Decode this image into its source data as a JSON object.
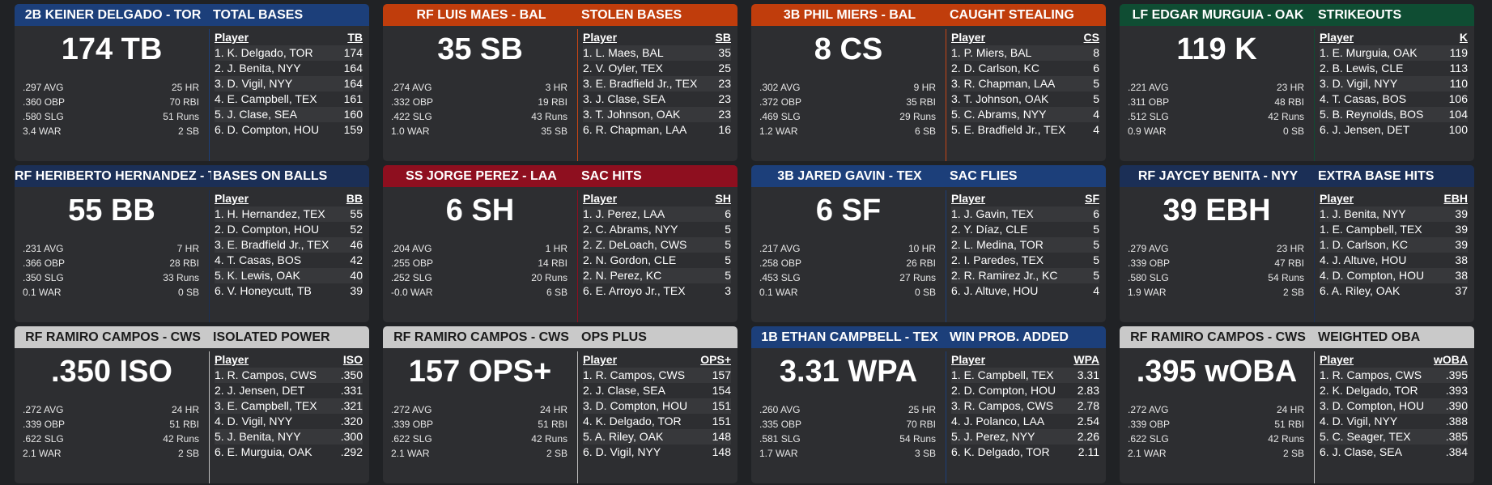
{
  "colors": {
    "blue": "#1c3f7a",
    "orange": "#c03d0c",
    "green": "#0f4d33",
    "red": "#8e0f1f",
    "navy": "#1b2f56",
    "gray": "#c9c9c9"
  },
  "cards": [
    {
      "color": "#1c3f7a",
      "player_title": "2B KEINER DELGADO - TOR",
      "stat_title": "TOTAL BASES",
      "big": "174 TB",
      "stats": [
        [
          ".297 AVG",
          "25 HR"
        ],
        [
          ".360 OBP",
          "70 RBI"
        ],
        [
          ".580 SLG",
          "51 Runs"
        ],
        [
          "3.4 WAR",
          "2 SB"
        ]
      ],
      "leader_head": [
        "Player",
        "TB"
      ],
      "leaders": [
        [
          "1. K. Delgado, TOR",
          "174"
        ],
        [
          "2. J. Benita, NYY",
          "164"
        ],
        [
          "3. D. Vigil, NYY",
          "164"
        ],
        [
          "4. E. Campbell, TEX",
          "161"
        ],
        [
          "5. J. Clase, SEA",
          "160"
        ],
        [
          "6. D. Compton, HOU",
          "159"
        ]
      ]
    },
    {
      "color": "#c03d0c",
      "player_title": "RF LUIS MAES - BAL",
      "stat_title": "STOLEN BASES",
      "big": "35 SB",
      "stats": [
        [
          ".274 AVG",
          "3 HR"
        ],
        [
          ".332 OBP",
          "19 RBI"
        ],
        [
          ".422 SLG",
          "43 Runs"
        ],
        [
          "1.0 WAR",
          "35 SB"
        ]
      ],
      "leader_head": [
        "Player",
        "SB"
      ],
      "leaders": [
        [
          "1. L. Maes, BAL",
          "35"
        ],
        [
          "2. V. Oyler, TEX",
          "25"
        ],
        [
          "3. E. Bradfield Jr., TEX",
          "23"
        ],
        [
          "3. J. Clase, SEA",
          "23"
        ],
        [
          "3. T. Johnson, OAK",
          "23"
        ],
        [
          "6. R. Chapman, LAA",
          "16"
        ]
      ]
    },
    {
      "color": "#c03d0c",
      "player_title": "3B PHIL MIERS - BAL",
      "stat_title": "CAUGHT STEALING",
      "big": "8 CS",
      "stats": [
        [
          ".302 AVG",
          "9 HR"
        ],
        [
          ".372 OBP",
          "35 RBI"
        ],
        [
          ".469 SLG",
          "29 Runs"
        ],
        [
          "1.2 WAR",
          "6 SB"
        ]
      ],
      "leader_head": [
        "Player",
        "CS"
      ],
      "leaders": [
        [
          "1. P. Miers, BAL",
          "8"
        ],
        [
          "2. D. Carlson, KC",
          "6"
        ],
        [
          "3. R. Chapman, LAA",
          "5"
        ],
        [
          "3. T. Johnson, OAK",
          "5"
        ],
        [
          "5. C. Abrams, NYY",
          "4"
        ],
        [
          "5. E. Bradfield Jr., TEX",
          "4"
        ]
      ]
    },
    {
      "color": "#0f4d33",
      "player_title": "LF EDGAR MURGUIA - OAK",
      "stat_title": "STRIKEOUTS",
      "big": "119 K",
      "stats": [
        [
          ".221 AVG",
          "23 HR"
        ],
        [
          ".311 OBP",
          "48 RBI"
        ],
        [
          ".512 SLG",
          "42 Runs"
        ],
        [
          "0.9 WAR",
          "0 SB"
        ]
      ],
      "leader_head": [
        "Player",
        "K"
      ],
      "leaders": [
        [
          "1. E. Murguia, OAK",
          "119"
        ],
        [
          "2. B. Lewis, CLE",
          "113"
        ],
        [
          "3. D. Vigil, NYY",
          "110"
        ],
        [
          "4. T. Casas, BOS",
          "106"
        ],
        [
          "5. B. Reynolds, BOS",
          "104"
        ],
        [
          "6. J. Jensen, DET",
          "100"
        ]
      ]
    },
    {
      "color": "#1b2f56",
      "player_title": "RF HERIBERTO HERNANDEZ - TEX",
      "stat_title": "BASES ON BALLS",
      "big": "55 BB",
      "stats": [
        [
          ".231 AVG",
          "7 HR"
        ],
        [
          ".366 OBP",
          "28 RBI"
        ],
        [
          ".350 SLG",
          "33 Runs"
        ],
        [
          "0.1 WAR",
          "0 SB"
        ]
      ],
      "leader_head": [
        "Player",
        "BB"
      ],
      "leaders": [
        [
          "1. H. Hernandez, TEX",
          "55"
        ],
        [
          "2. D. Compton, HOU",
          "52"
        ],
        [
          "3. E. Bradfield Jr., TEX",
          "46"
        ],
        [
          "4. T. Casas, BOS",
          "42"
        ],
        [
          "5. K. Lewis, OAK",
          "40"
        ],
        [
          "6. V. Honeycutt, TB",
          "39"
        ]
      ]
    },
    {
      "color": "#8e0f1f",
      "player_title": "SS JORGE PEREZ - LAA",
      "stat_title": "SAC HITS",
      "big": "6 SH",
      "stats": [
        [
          ".204 AVG",
          "1 HR"
        ],
        [
          ".255 OBP",
          "14 RBI"
        ],
        [
          ".252 SLG",
          "20 Runs"
        ],
        [
          "-0.0 WAR",
          "6 SB"
        ]
      ],
      "leader_head": [
        "Player",
        "SH"
      ],
      "leaders": [
        [
          "1. J. Perez, LAA",
          "6"
        ],
        [
          "2. C. Abrams, NYY",
          "5"
        ],
        [
          "2. Z. DeLoach, CWS",
          "5"
        ],
        [
          "2. N. Gordon, CLE",
          "5"
        ],
        [
          "2. N. Perez, KC",
          "5"
        ],
        [
          "6. E. Arroyo Jr., TEX",
          "3"
        ]
      ]
    },
    {
      "color": "#1c3f7a",
      "player_title": "3B JARED GAVIN - TEX",
      "stat_title": "SAC FLIES",
      "big": "6 SF",
      "stats": [
        [
          ".217 AVG",
          "10 HR"
        ],
        [
          ".258 OBP",
          "26 RBI"
        ],
        [
          ".453 SLG",
          "27 Runs"
        ],
        [
          "0.1 WAR",
          "0 SB"
        ]
      ],
      "leader_head": [
        "Player",
        "SF"
      ],
      "leaders": [
        [
          "1. J. Gavin, TEX",
          "6"
        ],
        [
          "2. Y. Díaz, CLE",
          "5"
        ],
        [
          "2. L. Medina, TOR",
          "5"
        ],
        [
          "2. I. Paredes, TEX",
          "5"
        ],
        [
          "2. R. Ramirez Jr., KC",
          "5"
        ],
        [
          "6. J. Altuve, HOU",
          "4"
        ]
      ]
    },
    {
      "color": "#1b2f56",
      "player_title": "RF JAYCEY BENITA - NYY",
      "stat_title": "EXTRA BASE HITS",
      "big": "39 EBH",
      "stats": [
        [
          ".279 AVG",
          "23 HR"
        ],
        [
          ".339 OBP",
          "47 RBI"
        ],
        [
          ".580 SLG",
          "54 Runs"
        ],
        [
          "1.9 WAR",
          "2 SB"
        ]
      ],
      "leader_head": [
        "Player",
        "EBH"
      ],
      "leaders": [
        [
          "1. J. Benita, NYY",
          "39"
        ],
        [
          "1. E. Campbell, TEX",
          "39"
        ],
        [
          "1. D. Carlson, KC",
          "39"
        ],
        [
          "4. J. Altuve, HOU",
          "38"
        ],
        [
          "4. D. Compton, HOU",
          "38"
        ],
        [
          "6. A. Riley, OAK",
          "37"
        ]
      ]
    },
    {
      "color": "#c9c9c9",
      "light": true,
      "player_title": "RF RAMIRO CAMPOS - CWS",
      "stat_title": "ISOLATED POWER",
      "big": ".350 ISO",
      "stats": [
        [
          ".272 AVG",
          "24 HR"
        ],
        [
          ".339 OBP",
          "51 RBI"
        ],
        [
          ".622 SLG",
          "42 Runs"
        ],
        [
          "2.1 WAR",
          "2 SB"
        ]
      ],
      "leader_head": [
        "Player",
        "ISO"
      ],
      "leaders": [
        [
          "1. R. Campos, CWS",
          ".350"
        ],
        [
          "2. J. Jensen, DET",
          ".331"
        ],
        [
          "3. E. Campbell, TEX",
          ".321"
        ],
        [
          "4. D. Vigil, NYY",
          ".320"
        ],
        [
          "5. J. Benita, NYY",
          ".300"
        ],
        [
          "6. E. Murguia, OAK",
          ".292"
        ]
      ]
    },
    {
      "color": "#c9c9c9",
      "light": true,
      "player_title": "RF RAMIRO CAMPOS - CWS",
      "stat_title": "OPS PLUS",
      "big": "157 OPS+",
      "stats": [
        [
          ".272 AVG",
          "24 HR"
        ],
        [
          ".339 OBP",
          "51 RBI"
        ],
        [
          ".622 SLG",
          "42 Runs"
        ],
        [
          "2.1 WAR",
          "2 SB"
        ]
      ],
      "leader_head": [
        "Player",
        "OPS+"
      ],
      "leaders": [
        [
          "1. R. Campos, CWS",
          "157"
        ],
        [
          "2. J. Clase, SEA",
          "154"
        ],
        [
          "3. D. Compton, HOU",
          "151"
        ],
        [
          "4. K. Delgado, TOR",
          "151"
        ],
        [
          "5. A. Riley, OAK",
          "148"
        ],
        [
          "6. D. Vigil, NYY",
          "148"
        ]
      ]
    },
    {
      "color": "#1c3f7a",
      "player_title": "1B ETHAN CAMPBELL - TEX",
      "stat_title": "WIN PROB. ADDED",
      "big": "3.31 WPA",
      "stats": [
        [
          ".260 AVG",
          "25 HR"
        ],
        [
          ".335 OBP",
          "70 RBI"
        ],
        [
          ".581 SLG",
          "54 Runs"
        ],
        [
          "1.7 WAR",
          "3 SB"
        ]
      ],
      "leader_head": [
        "Player",
        "WPA"
      ],
      "leaders": [
        [
          "1. E. Campbell, TEX",
          "3.31"
        ],
        [
          "2. D. Compton, HOU",
          "2.83"
        ],
        [
          "3. R. Campos, CWS",
          "2.78"
        ],
        [
          "4. J. Polanco, LAA",
          "2.54"
        ],
        [
          "5. J. Perez, NYY",
          "2.26"
        ],
        [
          "6. K. Delgado, TOR",
          "2.11"
        ]
      ]
    },
    {
      "color": "#c9c9c9",
      "light": true,
      "player_title": "RF RAMIRO CAMPOS - CWS",
      "stat_title": "WEIGHTED OBA",
      "big": ".395 wOBA",
      "stats": [
        [
          ".272 AVG",
          "24 HR"
        ],
        [
          ".339 OBP",
          "51 RBI"
        ],
        [
          ".622 SLG",
          "42 Runs"
        ],
        [
          "2.1 WAR",
          "2 SB"
        ]
      ],
      "leader_head": [
        "Player",
        "wOBA"
      ],
      "leaders": [
        [
          "1. R. Campos, CWS",
          ".395"
        ],
        [
          "2. K. Delgado, TOR",
          ".393"
        ],
        [
          "3. D. Compton, HOU",
          ".390"
        ],
        [
          "4. D. Vigil, NYY",
          ".388"
        ],
        [
          "5. C. Seager, TEX",
          ".385"
        ],
        [
          "6. J. Clase, SEA",
          ".384"
        ]
      ]
    }
  ]
}
